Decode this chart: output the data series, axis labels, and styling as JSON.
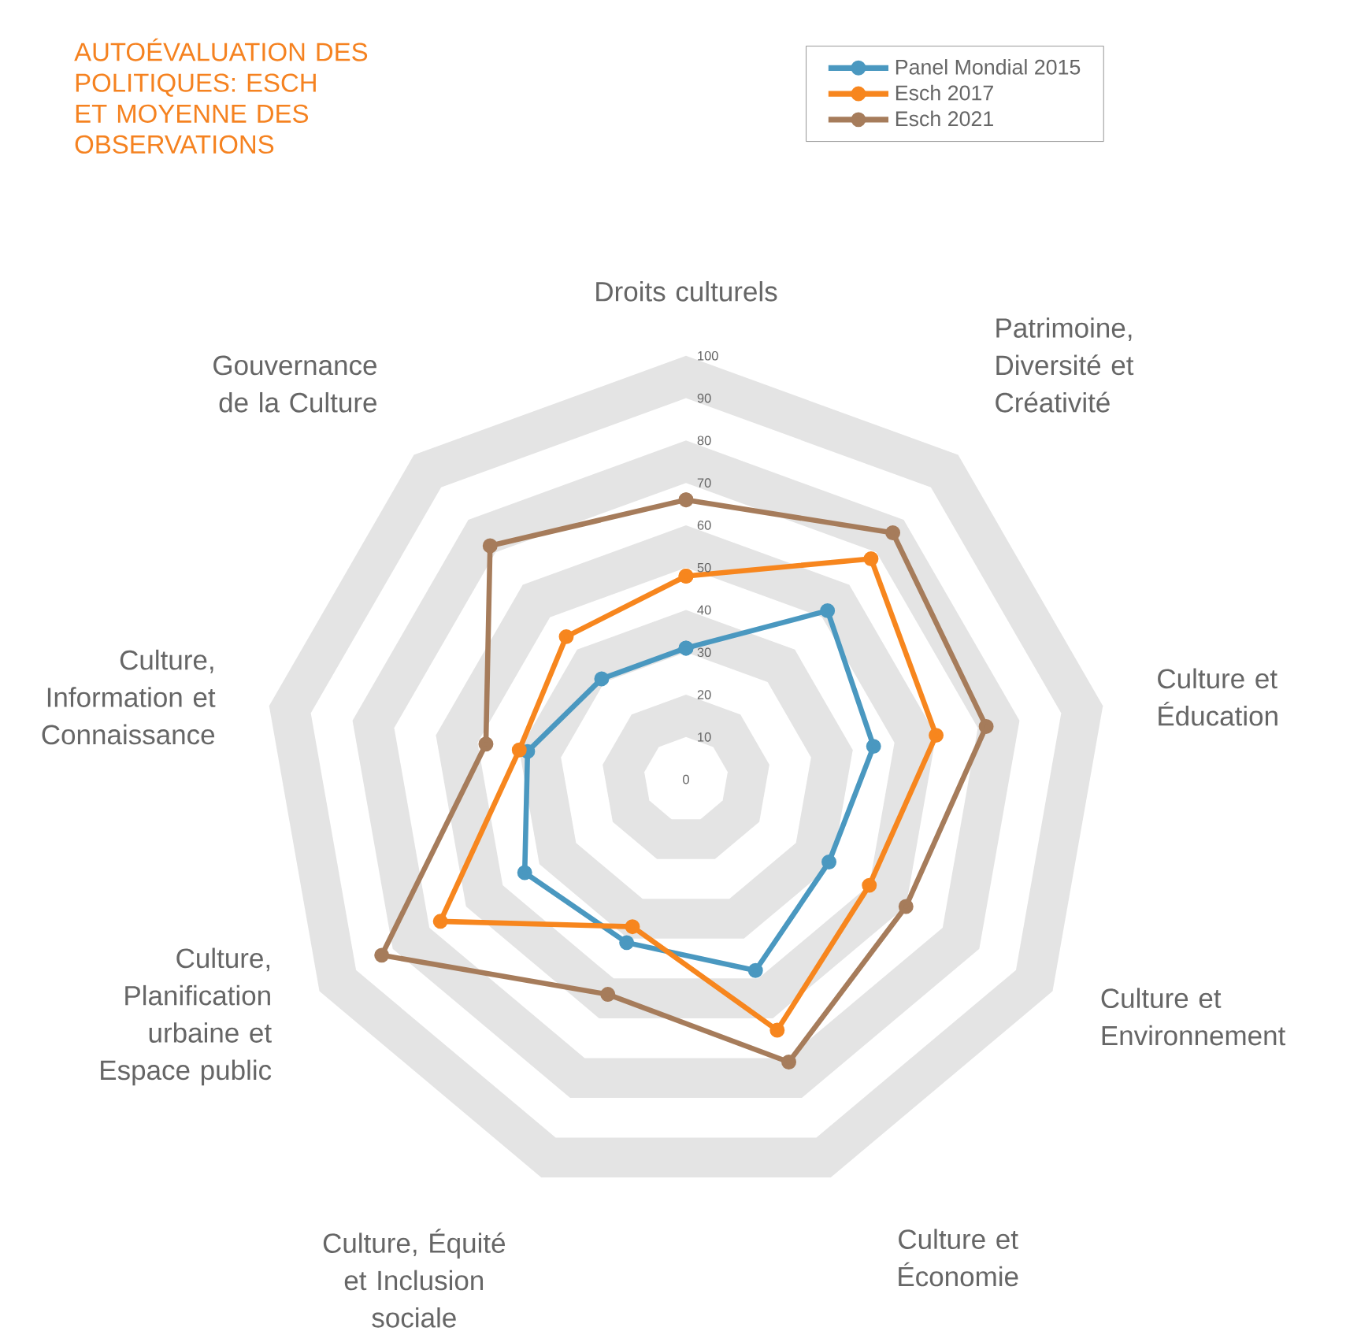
{
  "chart_data": {
    "type": "radar",
    "title": "AUTOÉVALUATION DES POLITIQUES: ESCH ET MOYENNE DES OBSERVATIONS",
    "categories": [
      "Droits culturels",
      "Patrimoine, Diversité et Créativité",
      "Culture et Éducation",
      "Culture et Environnement",
      "Culture et Économie",
      "Culture, Équité et Inclusion sociale",
      "Culture, Planification urbaine et Espace public",
      "Culture, Information et Connaissance",
      "Gouvernance de la Culture"
    ],
    "series": [
      {
        "name": "Panel Mondial 2015",
        "color": "#4a98c0",
        "values": [
          31,
          52,
          45,
          39,
          48,
          41,
          44,
          38,
          31
        ]
      },
      {
        "name": "Esch 2017",
        "color": "#f7861e",
        "values": [
          48,
          68,
          60,
          50,
          63,
          37,
          67,
          40,
          44
        ]
      },
      {
        "name": "Esch 2021",
        "color": "#a67c5b",
        "values": [
          66,
          76,
          72,
          60,
          71,
          54,
          83,
          48,
          72
        ]
      }
    ],
    "ylim": [
      0,
      100
    ],
    "yticks": [
      0,
      10,
      20,
      30,
      40,
      50,
      60,
      70,
      80,
      90,
      100
    ],
    "grid": true,
    "legend": "top right",
    "marker": "circle",
    "line_style": "solid"
  }
}
